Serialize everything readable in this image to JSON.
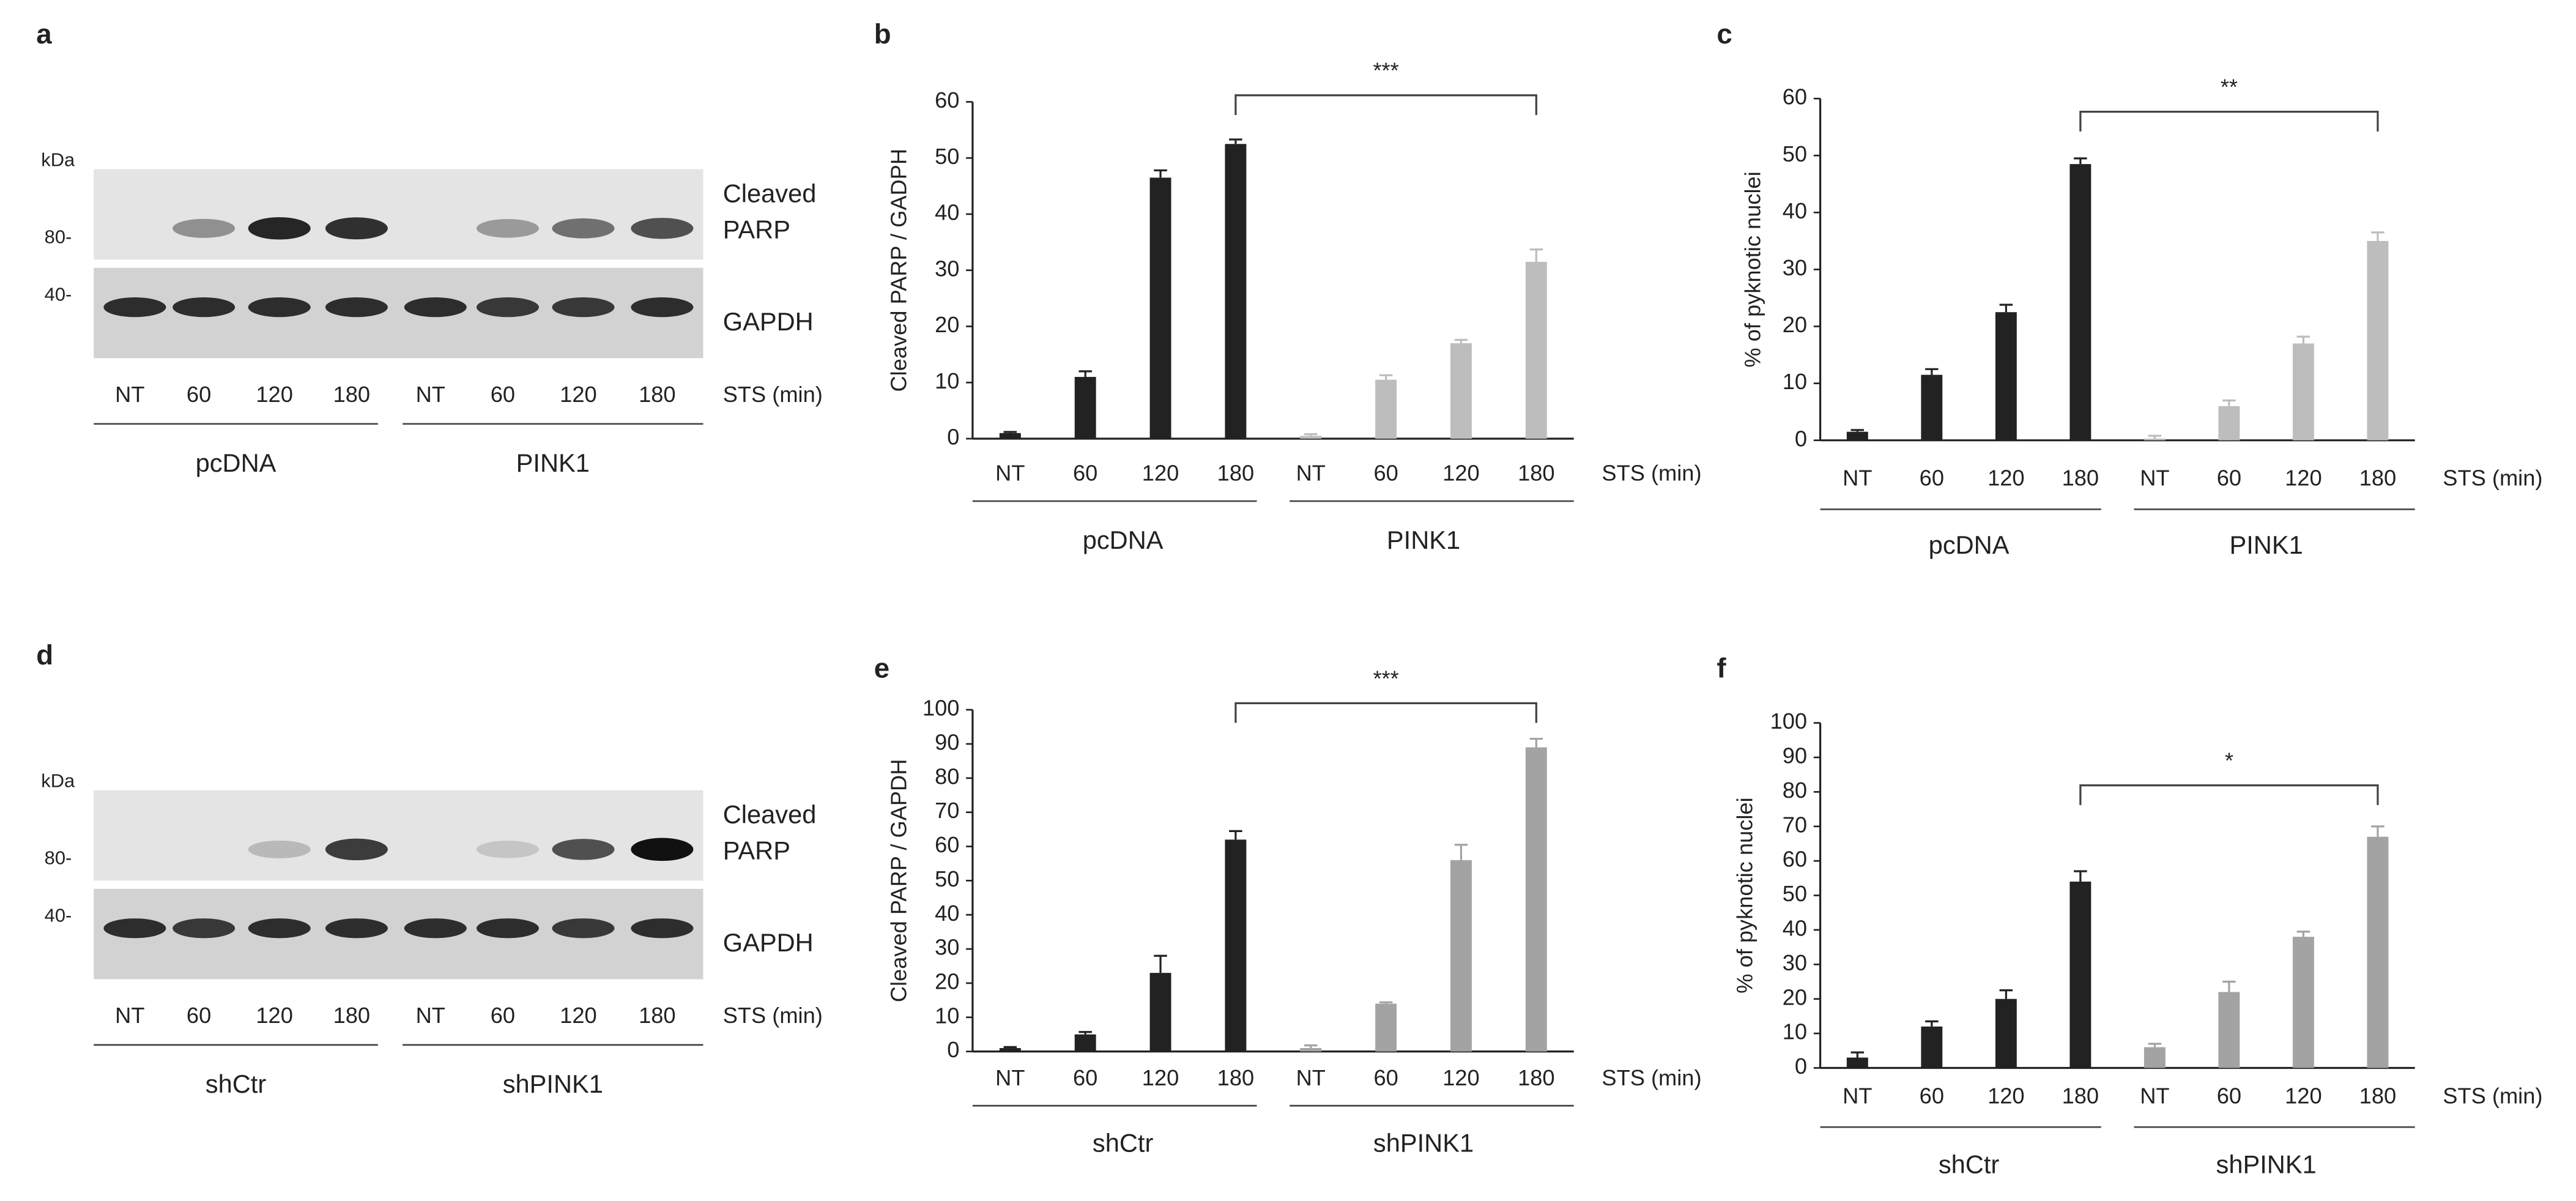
{
  "blots": [
    {
      "label": "a",
      "unit": "kDa",
      "rows": [
        {
          "marker": "80-",
          "name": [
            "Cleaved",
            "PARP"
          ]
        },
        {
          "marker": "40-",
          "name": [
            "GAPDH"
          ]
        }
      ],
      "lanes": [
        "NT",
        "60",
        "120",
        "180",
        "NT",
        "60",
        "120",
        "180"
      ],
      "x_label": "STS (min)",
      "groups": [
        "pcDNA",
        "PINK1"
      ]
    },
    {
      "label": "d",
      "unit": "kDa",
      "rows": [
        {
          "marker": "80-",
          "name": [
            "Cleaved",
            "PARP"
          ]
        },
        {
          "marker": "40-",
          "name": [
            "GAPDH"
          ]
        }
      ],
      "lanes": [
        "NT",
        "60",
        "120",
        "180",
        "NT",
        "60",
        "120",
        "180"
      ],
      "x_label": "STS (min)",
      "groups": [
        "shCtr",
        "shPINK1"
      ]
    }
  ],
  "chart_data": [
    {
      "type": "bar",
      "label": "b",
      "ylabel": "Cleaved PARP / GADPH",
      "x_label": "STS (min)",
      "categories": [
        "NT",
        "60",
        "120",
        "180"
      ],
      "ylim": [
        0,
        60
      ],
      "yticks": [
        0,
        10,
        20,
        30,
        40,
        50,
        60
      ],
      "series": [
        {
          "name": "pcDNA",
          "color": "#222222",
          "values": [
            1,
            11,
            46.5,
            52.5
          ],
          "errors": [
            0.2,
            1,
            1.3,
            0.8
          ]
        },
        {
          "name": "PINK1",
          "color": "#bdbdbd",
          "values": [
            0.5,
            10.5,
            17,
            31.5
          ],
          "errors": [
            0.3,
            0.8,
            0.6,
            2.2
          ]
        }
      ],
      "significance": "***"
    },
    {
      "type": "bar",
      "label": "c",
      "ylabel": "% of pyknotic nuclei",
      "x_label": "STS (min)",
      "categories": [
        "NT",
        "60",
        "120",
        "180"
      ],
      "ylim": [
        0,
        60
      ],
      "yticks": [
        0,
        10,
        20,
        30,
        40,
        50,
        60
      ],
      "series": [
        {
          "name": "pcDNA",
          "color": "#222222",
          "values": [
            1.5,
            11.5,
            22.5,
            48.5
          ],
          "errors": [
            0.3,
            1,
            1.3,
            1
          ]
        },
        {
          "name": "PINK1",
          "color": "#bdbdbd",
          "values": [
            0.3,
            6,
            17,
            35
          ],
          "errors": [
            0.5,
            1,
            1.2,
            1.5
          ]
        }
      ],
      "significance": "**"
    },
    {
      "type": "bar",
      "label": "e",
      "ylabel": "Cleaved PARP / GAPDH",
      "x_label": "STS (min)",
      "categories": [
        "NT",
        "60",
        "120",
        "180"
      ],
      "ylim": [
        0,
        100
      ],
      "yticks": [
        0,
        10,
        20,
        30,
        40,
        50,
        60,
        70,
        80,
        90,
        100
      ],
      "series": [
        {
          "name": "shCtr",
          "color": "#222222",
          "values": [
            1,
            5,
            23,
            62
          ],
          "errors": [
            0.3,
            0.7,
            5,
            2.5
          ]
        },
        {
          "name": "shPINK1",
          "color": "#a3a3a3",
          "values": [
            1,
            14,
            56,
            89
          ],
          "errors": [
            0.8,
            0.4,
            4.5,
            2.5
          ]
        }
      ],
      "significance": "***"
    },
    {
      "type": "bar",
      "label": "f",
      "ylabel": "% of pyknotic nuclei",
      "x_label": "STS (min)",
      "categories": [
        "NT",
        "60",
        "120",
        "180"
      ],
      "ylim": [
        0,
        100
      ],
      "yticks": [
        0,
        10,
        20,
        30,
        40,
        50,
        60,
        70,
        80,
        90,
        100
      ],
      "series": [
        {
          "name": "shCtr",
          "color": "#222222",
          "values": [
            3,
            12,
            20,
            54
          ],
          "errors": [
            1.5,
            1.5,
            2.5,
            3
          ]
        },
        {
          "name": "shPINK1",
          "color": "#a3a3a3",
          "values": [
            6,
            22,
            38,
            67
          ],
          "errors": [
            1,
            3,
            1.5,
            3
          ]
        }
      ],
      "significance": "*"
    }
  ]
}
